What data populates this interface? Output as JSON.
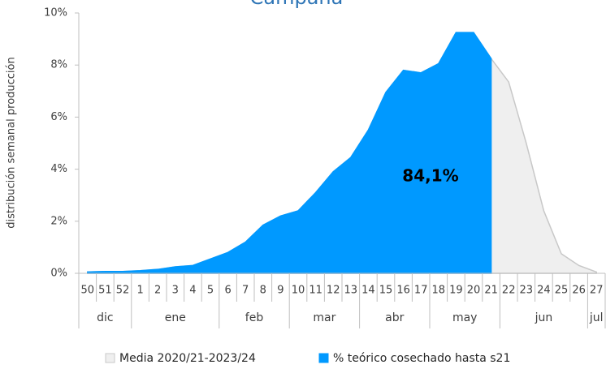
{
  "chart_data": {
    "type": "area",
    "title": "Campaña",
    "ylabel": "distribución semanal producción",
    "annotation": "84,1%",
    "categories": [
      [
        "50",
        "dic"
      ],
      [
        "51",
        "dic"
      ],
      [
        "52",
        "dic"
      ],
      [
        "1",
        "ene"
      ],
      [
        "2",
        "ene"
      ],
      [
        "3",
        "ene"
      ],
      [
        "4",
        "ene"
      ],
      [
        "5",
        "ene"
      ],
      [
        "6",
        "feb"
      ],
      [
        "7",
        "feb"
      ],
      [
        "8",
        "feb"
      ],
      [
        "9",
        "feb"
      ],
      [
        "10",
        "mar"
      ],
      [
        "11",
        "mar"
      ],
      [
        "12",
        "mar"
      ],
      [
        "13",
        "mar"
      ],
      [
        "14",
        "abr"
      ],
      [
        "15",
        "abr"
      ],
      [
        "16",
        "abr"
      ],
      [
        "17",
        "abr"
      ],
      [
        "18",
        "may"
      ],
      [
        "19",
        "may"
      ],
      [
        "20",
        "may"
      ],
      [
        "21",
        "may"
      ],
      [
        "22",
        "jun"
      ],
      [
        "23",
        "jun"
      ],
      [
        "24",
        "jun"
      ],
      [
        "25",
        "jun"
      ],
      [
        "26",
        "jun"
      ],
      [
        "27",
        "jul"
      ]
    ],
    "series": [
      {
        "name": "Media 2020/21-2023/24",
        "color": "#efefef",
        "stroke": "#c8c8c8",
        "values": [
          0.05,
          0.07,
          0.07,
          0.1,
          0.15,
          0.25,
          0.3,
          0.55,
          0.8,
          1.2,
          1.85,
          2.2,
          2.4,
          3.1,
          3.9,
          4.45,
          5.5,
          6.95,
          7.8,
          7.7,
          8.05,
          9.25,
          9.25,
          8.25,
          7.35,
          5.0,
          2.4,
          0.75,
          0.3,
          0.05
        ]
      },
      {
        "name": "% teórico cosechado hasta s21",
        "color": "#0099ff",
        "stroke": "#0099ff",
        "values": [
          0.05,
          0.07,
          0.07,
          0.1,
          0.15,
          0.25,
          0.3,
          0.55,
          0.8,
          1.2,
          1.85,
          2.2,
          2.4,
          3.1,
          3.9,
          4.45,
          5.5,
          6.95,
          7.8,
          7.7,
          8.05,
          9.25,
          9.25,
          8.25,
          null,
          null,
          null,
          null,
          null,
          null
        ]
      }
    ],
    "ylim": [
      0,
      10
    ],
    "yticks": [
      {
        "value": 0,
        "label": "0%"
      },
      {
        "value": 2,
        "label": "2%"
      },
      {
        "value": 4,
        "label": "4%"
      },
      {
        "value": 6,
        "label": "6%"
      },
      {
        "value": 8,
        "label": "8%"
      },
      {
        "value": 10,
        "label": "10%"
      }
    ],
    "grid": false,
    "legend": "bottom"
  }
}
